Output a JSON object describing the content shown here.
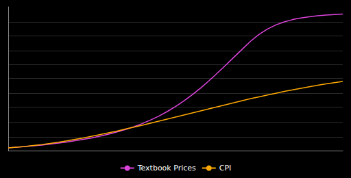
{
  "chart_data": {
    "type": "line",
    "x": [
      0,
      1,
      2,
      3,
      4,
      5,
      6,
      7,
      8,
      9,
      10,
      11,
      12,
      13,
      14,
      15,
      16,
      17,
      18,
      19,
      20,
      21,
      22,
      23,
      24,
      25,
      26,
      27,
      28,
      29,
      30,
      31,
      32,
      33,
      34,
      35,
      36,
      37,
      38,
      39,
      40
    ],
    "series": [
      {
        "name": "Textbook Prices",
        "color": "#dd44dd",
        "values": [
          0.02,
          0.025,
          0.03,
          0.035,
          0.04,
          0.047,
          0.055,
          0.063,
          0.072,
          0.082,
          0.093,
          0.106,
          0.12,
          0.136,
          0.154,
          0.174,
          0.197,
          0.223,
          0.252,
          0.285,
          0.322,
          0.363,
          0.408,
          0.457,
          0.51,
          0.566,
          0.624,
          0.683,
          0.742,
          0.8,
          0.849,
          0.888,
          0.918,
          0.94,
          0.957,
          0.969,
          0.978,
          0.985,
          0.99,
          0.994,
          0.997
        ]
      },
      {
        "name": "CPI",
        "color": "#ffaa00",
        "values": [
          0.02,
          0.025,
          0.03,
          0.037,
          0.044,
          0.052,
          0.061,
          0.071,
          0.082,
          0.093,
          0.105,
          0.117,
          0.13,
          0.143,
          0.157,
          0.171,
          0.185,
          0.2,
          0.215,
          0.23,
          0.245,
          0.26,
          0.275,
          0.29,
          0.305,
          0.32,
          0.335,
          0.35,
          0.365,
          0.38,
          0.393,
          0.406,
          0.419,
          0.432,
          0.444,
          0.455,
          0.466,
          0.477,
          0.487,
          0.496,
          0.505
        ]
      }
    ],
    "xlim": [
      0,
      40
    ],
    "ylim": [
      0,
      1.05
    ],
    "yticks": [
      0.105,
      0.21,
      0.315,
      0.42,
      0.525,
      0.63,
      0.735,
      0.84,
      0.945
    ],
    "grid": true,
    "tick_labels": false,
    "legend": "bottom"
  }
}
